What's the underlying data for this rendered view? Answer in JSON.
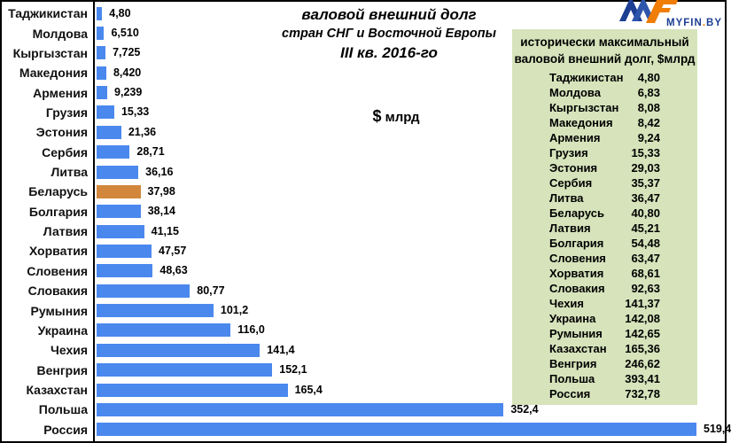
{
  "title": {
    "line1": "валовой внешний долг",
    "line2": "стран СНГ и Восточной Европы",
    "line3": "III кв. 2016-го",
    "unit_dollar": "$",
    "unit_text": " млрд"
  },
  "logo": {
    "text_main": "MYFIN",
    "text_dot": ".",
    "text_tld": "BY",
    "blue": "#1c3f94",
    "orange": "#f07d05"
  },
  "chart_data": {
    "type": "bar",
    "orientation": "horizontal",
    "title": "валовой внешний долг стран СНГ и Восточной Европы III кв. 2016-го",
    "unit": "$ млрд",
    "bar_color": "#4a88ee",
    "highlight_color": "#d2873c",
    "highlight_category": "Беларусь",
    "xlim": [
      0,
      519.4
    ],
    "grid": false,
    "legend": false,
    "categories": [
      "Таджикистан",
      "Молдова",
      "Кыргызстан",
      "Македония",
      "Армения",
      "Грузия",
      "Эстония",
      "Сербия",
      "Литва",
      "Беларусь",
      "Болгария",
      "Латвия",
      "Хорватия",
      "Словения",
      "Словакия",
      "Румыния",
      "Украина",
      "Чехия",
      "Венгрия",
      "Казахстан",
      "Польша",
      "Россия"
    ],
    "values": [
      4.8,
      6.51,
      7.725,
      8.42,
      9.239,
      15.33,
      21.36,
      28.71,
      36.16,
      37.98,
      38.14,
      41.15,
      47.57,
      48.63,
      80.77,
      101.2,
      116.0,
      141.4,
      152.1,
      165.4,
      352.4,
      519.4
    ],
    "value_labels": [
      "4,80",
      "6,510",
      "7,725",
      "8,420",
      "9,239",
      "15,33",
      "21,36",
      "28,71",
      "36,16",
      "37,98",
      "38,14",
      "41,15",
      "47,57",
      "48,63",
      "80,77",
      "101,2",
      "116,0",
      "141,4",
      "152,1",
      "165,4",
      "352,4",
      "519,4"
    ]
  },
  "panel": {
    "bg": "#d6e3bb",
    "title_line1": "исторически максимальный",
    "title_line2": "валовой внешний долг,  $млрд",
    "rows": [
      {
        "name": "Таджикистан",
        "value": "4,80"
      },
      {
        "name": "Молдова",
        "value": "6,83"
      },
      {
        "name": "Кыргызстан",
        "value": "8,08"
      },
      {
        "name": "Македония",
        "value": "8,42"
      },
      {
        "name": "Армения",
        "value": "9,24"
      },
      {
        "name": "Грузия",
        "value": "15,33"
      },
      {
        "name": "Эстония",
        "value": "29,03"
      },
      {
        "name": "Сербия",
        "value": "35,37"
      },
      {
        "name": "Литва",
        "value": "36,47"
      },
      {
        "name": "Беларусь",
        "value": "40,80"
      },
      {
        "name": "Латвия",
        "value": "45,21"
      },
      {
        "name": "Болгария",
        "value": "54,48"
      },
      {
        "name": "Словения",
        "value": "63,47"
      },
      {
        "name": "Хорватия",
        "value": "68,61"
      },
      {
        "name": "Словакия",
        "value": "92,63"
      },
      {
        "name": "Чехия",
        "value": "141,37"
      },
      {
        "name": "Украина",
        "value": "142,08"
      },
      {
        "name": "Румыния",
        "value": "142,65"
      },
      {
        "name": "Казахстан",
        "value": "165,36"
      },
      {
        "name": "Венгрия",
        "value": "246,62"
      },
      {
        "name": "Польша",
        "value": "393,41"
      },
      {
        "name": "Россия",
        "value": "732,78"
      }
    ]
  }
}
